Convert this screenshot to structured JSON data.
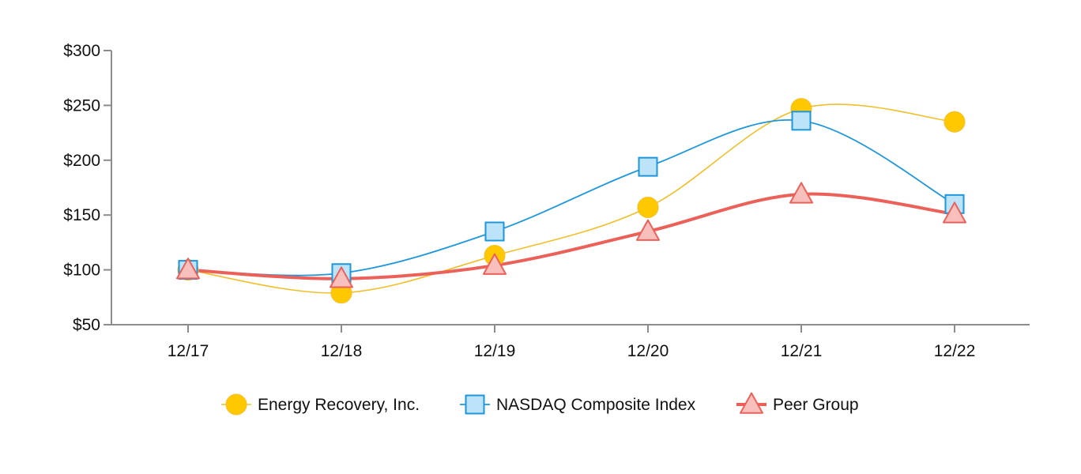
{
  "chart_data": {
    "type": "line",
    "categories": [
      "12/17",
      "12/18",
      "12/19",
      "12/20",
      "12/21",
      "12/22"
    ],
    "ylim": [
      50,
      300
    ],
    "y_ticks": [
      50,
      100,
      150,
      200,
      250,
      300
    ],
    "y_tick_labels": [
      "$50",
      "$100",
      "$150",
      "$200",
      "$250",
      "$300"
    ],
    "grid": false,
    "legend_position": "bottom",
    "series": [
      {
        "name": "Energy Recovery, Inc.",
        "values": [
          100,
          79,
          113,
          157,
          247,
          235
        ],
        "marker": "circle",
        "line_color": "#F2BE2A",
        "marker_fill": "#FFC800",
        "marker_stroke": "#F2BE2A"
      },
      {
        "name": "NASDAQ Composite Index",
        "values": [
          100,
          97,
          135,
          194,
          236,
          160
        ],
        "marker": "square",
        "line_color": "#1E96DC",
        "marker_fill": "#BDE3F8",
        "marker_stroke": "#1E96DC"
      },
      {
        "name": "Peer Group",
        "values": [
          100,
          92,
          104,
          135,
          169,
          151
        ],
        "marker": "triangle",
        "line_color": "#EB6159",
        "marker_fill": "#F7C0BC",
        "marker_stroke": "#EB6159"
      }
    ]
  }
}
